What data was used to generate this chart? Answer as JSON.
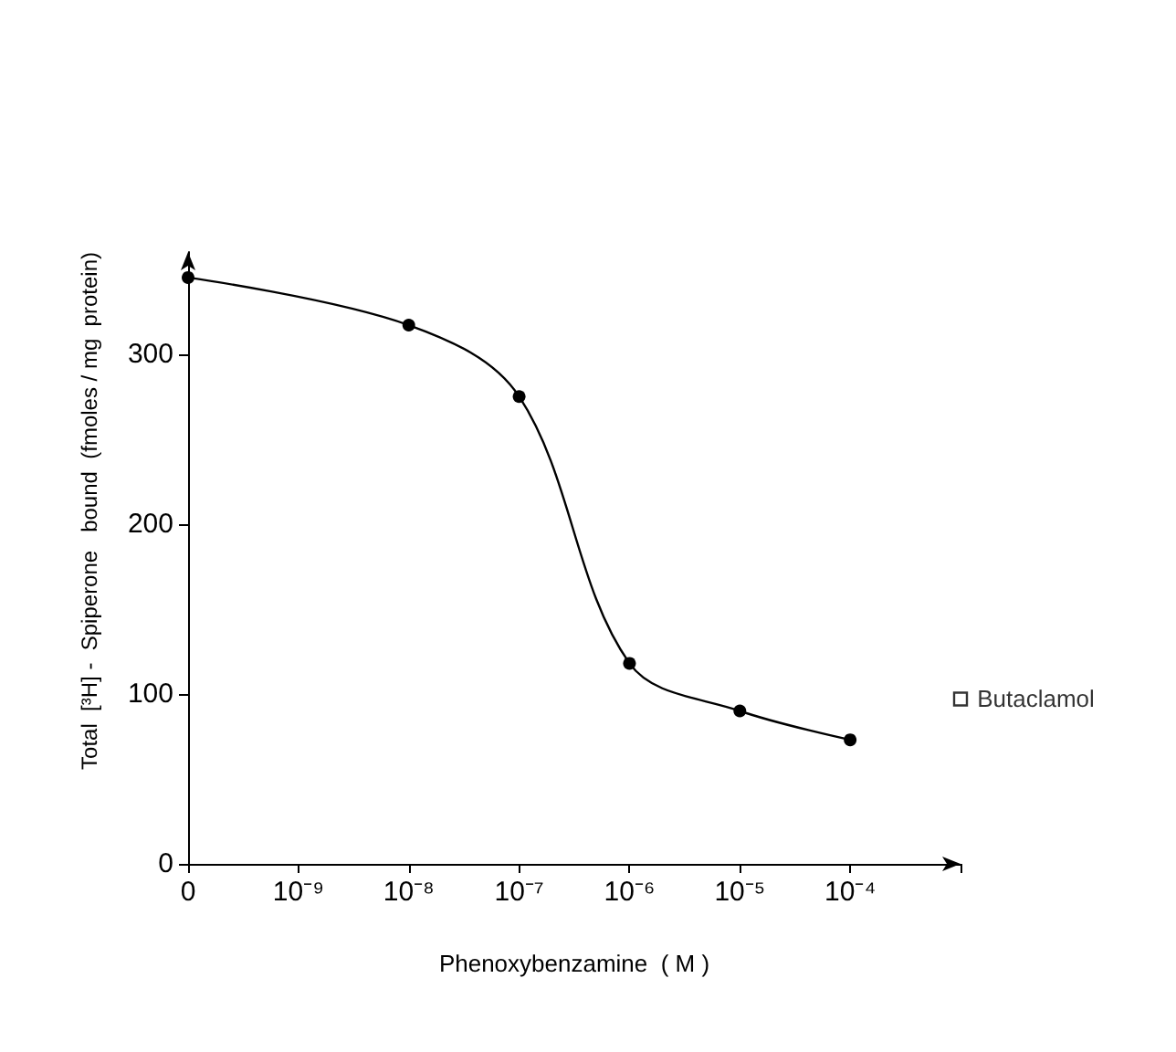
{
  "chart_data": {
    "type": "line",
    "xlabel": "Phenoxybenzamine  ( M )",
    "ylabel": "Total  [³H] -  Spiperone   bound  (fmoles / mg  protein)",
    "categories": [
      "0",
      "10⁻⁹",
      "10⁻⁸",
      "10⁻⁷",
      "10⁻⁶",
      "10⁻⁵",
      "10⁻⁴",
      null
    ],
    "series": [
      {
        "color": "#000000",
        "values": [
          345,
          null,
          317,
          275,
          118,
          90,
          73,
          null
        ],
        "marker": "circle"
      },
      {
        "name": "Butaclamol",
        "type": "scatter",
        "color": "#000000",
        "values": [
          null,
          null,
          null,
          null,
          null,
          null,
          null,
          97
        ],
        "marker": "square"
      }
    ],
    "ylim": [
      0,
      360
    ],
    "yticks": [
      0,
      100,
      200,
      300
    ],
    "grid": false,
    "legend": false,
    "line_style": "solid"
  }
}
